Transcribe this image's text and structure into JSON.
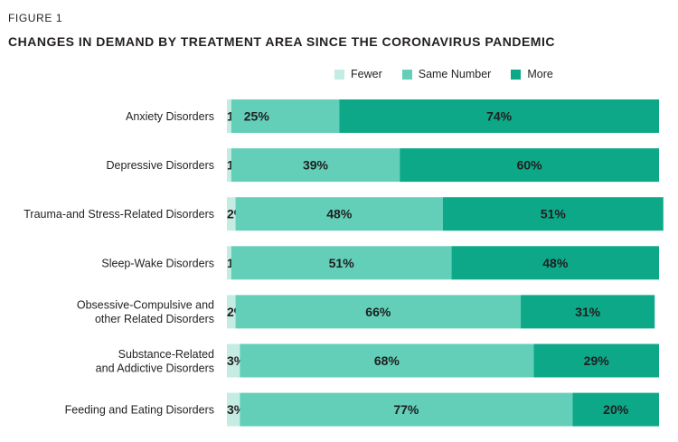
{
  "figure_label": "FIGURE 1",
  "chart_data": {
    "type": "bar",
    "orientation": "horizontal",
    "stacked": true,
    "percent": true,
    "title": "CHANGES IN DEMAND BY TREATMENT AREA SINCE THE CORONAVIRUS PANDEMIC",
    "legend_position": "top-right",
    "categories": [
      [
        "Anxiety Disorders"
      ],
      [
        "Depressive Disorders"
      ],
      [
        "Trauma-and Stress-Related Disorders"
      ],
      [
        "Sleep-Wake Disorders"
      ],
      [
        "Obsessive-Compulsive and",
        "other Related Disorders"
      ],
      [
        "Substance-Related",
        "and Addictive Disorders"
      ],
      [
        "Feeding and Eating Disorders"
      ]
    ],
    "series": [
      {
        "name": "Fewer",
        "color": "#c5ece2",
        "values": [
          1,
          1,
          2,
          1,
          2,
          3,
          3
        ]
      },
      {
        "name": "Same Number",
        "color": "#63cfb9",
        "values": [
          25,
          39,
          48,
          51,
          66,
          68,
          77
        ]
      },
      {
        "name": "More",
        "color": "#0ca888",
        "values": [
          74,
          60,
          51,
          48,
          31,
          29,
          20
        ]
      }
    ]
  }
}
